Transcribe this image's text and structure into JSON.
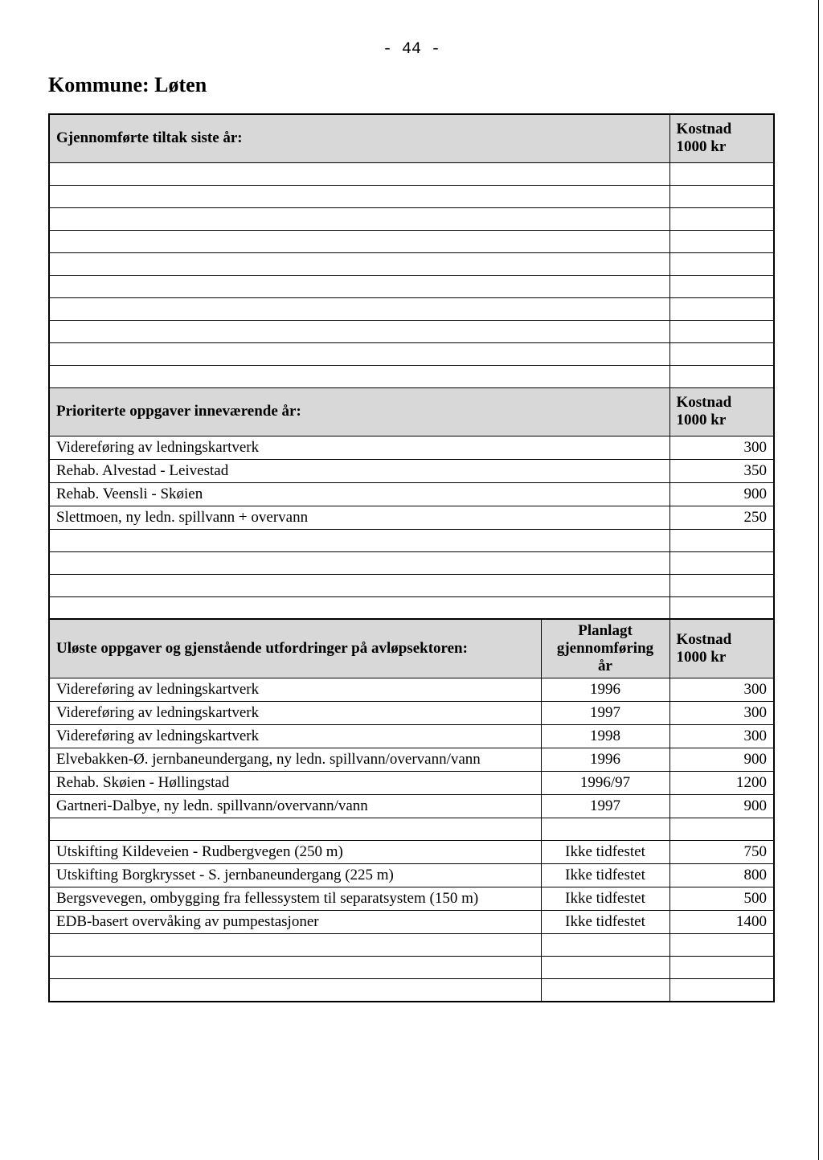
{
  "page": {
    "number": "- 44 -",
    "title": "Kommune: Løten"
  },
  "colors": {
    "header_bg": "#d8d8d8",
    "border": "#000000",
    "background": "#ffffff",
    "text": "#000000"
  },
  "typography": {
    "title_fontsize_pt": 18,
    "body_fontsize_pt": 13,
    "title_weight": "bold",
    "font_family": "Times New Roman"
  },
  "table1": {
    "header": {
      "label": "Gjennomførte tiltak siste år:",
      "cost_label": "Kostnad\n1000 kr"
    },
    "empty_rows": 10
  },
  "table2": {
    "header": {
      "label": "Prioriterte oppgaver inneværende år:",
      "cost_label": "Kostnad\n1000 kr"
    },
    "rows": [
      {
        "label": "Videreføring av ledningskartverk",
        "cost": "300"
      },
      {
        "label": "Rehab. Alvestad - Leivestad",
        "cost": "350"
      },
      {
        "label": "Rehab. Veensli - Skøien",
        "cost": "900"
      },
      {
        "label": "Slettmoen, ny ledn. spillvann + overvann",
        "cost": "250"
      }
    ],
    "trailing_empty_rows": 4
  },
  "table3": {
    "header": {
      "label": "Uløste oppgaver og gjenstående utfordringer på avløpsektoren:",
      "year_label": "Planlagt\ngjennomføring\når",
      "cost_label": "Kostnad\n1000 kr"
    },
    "rows": [
      {
        "label": "Videreføring av ledningskartverk",
        "year": "1996",
        "cost": "300"
      },
      {
        "label": "Videreføring av ledningskartverk",
        "year": "1997",
        "cost": "300"
      },
      {
        "label": "Videreføring av ledningskartverk",
        "year": "1998",
        "cost": "300"
      },
      {
        "label": "Elvebakken-Ø. jernbaneundergang, ny ledn. spillvann/overvann/vann",
        "year": "1996",
        "cost": "900"
      },
      {
        "label": "Rehab. Skøien - Høllingstad",
        "year": "1996/97",
        "cost": "1200"
      },
      {
        "label": "Gartneri-Dalbye, ny ledn. spillvann/overvann/vann",
        "year": "1997",
        "cost": "900"
      },
      {
        "label": "",
        "year": "",
        "cost": ""
      },
      {
        "label": "Utskifting Kildeveien - Rudbergvegen (250 m)",
        "year": "Ikke tidfestet",
        "cost": "750"
      },
      {
        "label": "Utskifting Borgkrysset - S. jernbaneundergang (225 m)",
        "year": "Ikke tidfestet",
        "cost": "800"
      },
      {
        "label": "Bergsvevegen, ombygging fra fellessystem til separatsystem (150 m)",
        "year": "Ikke tidfestet",
        "cost": "500"
      },
      {
        "label": "EDB-basert overvåking av pumpestasjoner",
        "year": "Ikke tidfestet",
        "cost": "1400"
      }
    ],
    "trailing_empty_rows": 3
  }
}
